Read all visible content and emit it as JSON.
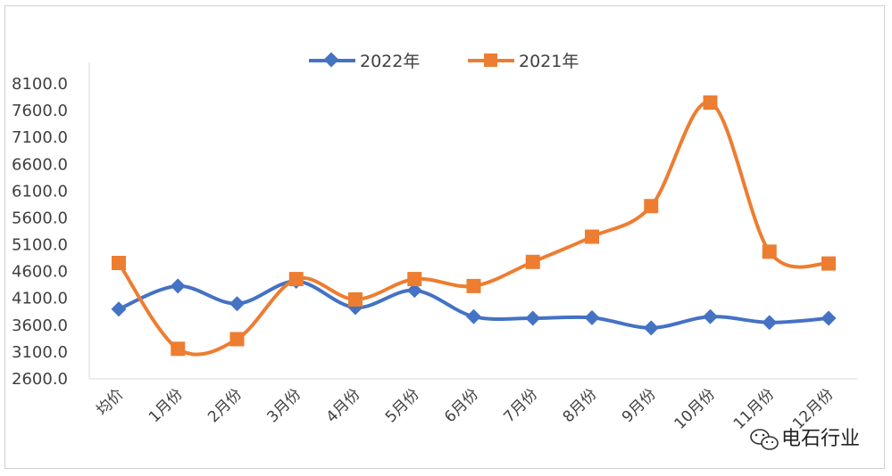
{
  "chart_data": {
    "type": "line",
    "title": "",
    "xlabel": "",
    "ylabel": "",
    "categories": [
      "均价",
      "1月份",
      "2月份",
      "3月份",
      "4月份",
      "5月份",
      "6月份",
      "7月份",
      "8月份",
      "9月份",
      "10月份",
      "11月份",
      "12月份"
    ],
    "ylim": [
      2600.0,
      8100.0
    ],
    "yticks": [
      "8100.0",
      "7600.0",
      "7100.0",
      "6600.0",
      "6100.0",
      "5600.0",
      "5100.0",
      "4600.0",
      "4100.0",
      "3600.0",
      "3100.0",
      "2600.0"
    ],
    "smooth": true,
    "grid": false,
    "legend_position": "top",
    "series": [
      {
        "name": "2022年",
        "color": "#4472C4",
        "marker": "diamond",
        "values": [
          3900,
          4330,
          4000,
          4420,
          3930,
          4250,
          3760,
          3730,
          3740,
          3550,
          3760,
          3650,
          3730
        ]
      },
      {
        "name": "2021年",
        "color": "#ED7D31",
        "marker": "square",
        "values": [
          4760,
          3160,
          3340,
          4460,
          4080,
          4460,
          4330,
          4780,
          5250,
          5820,
          7750,
          4970,
          4750
        ]
      }
    ]
  },
  "watermark": {
    "text": "电石行业",
    "icon": "wechat-icon"
  }
}
